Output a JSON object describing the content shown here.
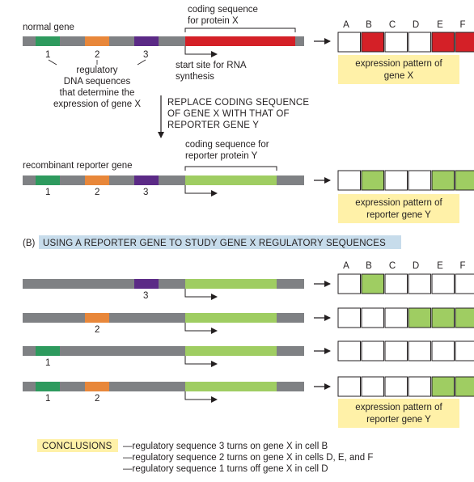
{
  "colors": {
    "gene_backbone": "#7f8184",
    "reg1": "#2e9a5e",
    "reg2": "#e8873a",
    "reg3": "#5b2a86",
    "coding_x": "#d42027",
    "coding_y": "#9fcd62",
    "caption_box": "#fff1a8",
    "banner": "#c7dceb",
    "conclusions_box": "#fff1a8"
  },
  "top": {
    "normal_gene_label": "normal gene",
    "coding_x_label_line1": "coding sequence",
    "coding_x_label_line2": "for protein X",
    "reg_numbers": [
      "1",
      "2",
      "3"
    ],
    "regulatory_label": [
      "regulatory",
      "DNA sequences",
      "that determine the",
      "expression of gene X"
    ],
    "start_site_label": [
      "start site for RNA",
      "synthesis"
    ],
    "replace_label": [
      "REPLACE CODING SEQUENCE",
      "OF GENE X WITH THAT OF",
      "REPORTER GENE Y"
    ],
    "recombinant_label": "recombinant reporter gene",
    "coding_y_label_line1": "coding sequence for",
    "coding_y_label_line2": "reporter protein Y",
    "cell_columns": [
      "A",
      "B",
      "C",
      "D",
      "E",
      "F"
    ],
    "pattern_gene_x": [
      false,
      true,
      false,
      false,
      true,
      true
    ],
    "pattern_reporter_y": [
      false,
      true,
      false,
      false,
      true,
      true
    ],
    "caption_x": [
      "expression pattern of",
      "gene X"
    ],
    "caption_y": [
      "expression pattern of",
      "reporter gene Y"
    ]
  },
  "section_b": {
    "banner_label": "(B)",
    "banner_title": "USING A REPORTER GENE TO STUDY GENE X REGULATORY SEQUENCES",
    "cell_columns": [
      "A",
      "B",
      "C",
      "D",
      "E",
      "F"
    ],
    "constructs": [
      {
        "regs": [
          "3"
        ],
        "pattern": [
          false,
          true,
          false,
          false,
          false,
          false
        ]
      },
      {
        "regs": [
          "2"
        ],
        "pattern": [
          false,
          false,
          false,
          true,
          true,
          true
        ]
      },
      {
        "regs": [
          "1"
        ],
        "pattern": [
          false,
          false,
          false,
          false,
          false,
          false
        ]
      },
      {
        "regs": [
          "1",
          "2"
        ],
        "pattern": [
          false,
          false,
          false,
          false,
          true,
          true
        ]
      }
    ],
    "caption": [
      "expression pattern of",
      "reporter gene Y"
    ]
  },
  "conclusions": {
    "label": "CONCLUSIONS",
    "lines": [
      "—regulatory sequence 3 turns on gene X in cell B",
      "—regulatory sequence 2 turns on gene X in cells D, E, and F",
      "—regulatory sequence 1 turns off gene X in cell D"
    ]
  }
}
